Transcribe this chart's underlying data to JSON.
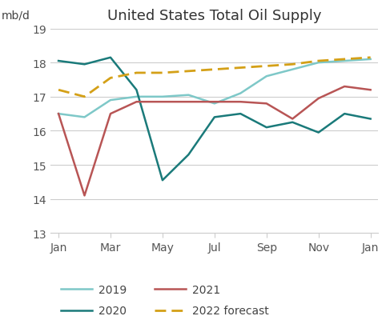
{
  "title": "United States Total Oil Supply",
  "ylabel": "mb/d",
  "x_ticks": [
    0,
    2,
    4,
    6,
    8,
    10,
    12
  ],
  "x_tick_labels": [
    "Jan",
    "Mar",
    "May",
    "Jul",
    "Sep",
    "Nov",
    "Jan"
  ],
  "ylim": [
    13,
    19
  ],
  "yticks": [
    13,
    14,
    15,
    16,
    17,
    18,
    19
  ],
  "series_2019": [
    16.5,
    16.4,
    16.9,
    17.0,
    17.0,
    17.05,
    16.8,
    17.1,
    17.6,
    17.8,
    18.0,
    18.05,
    18.1
  ],
  "series_2020": [
    18.05,
    17.95,
    18.15,
    17.2,
    14.55,
    15.3,
    16.4,
    16.5,
    16.1,
    16.25,
    15.95,
    16.5,
    16.35
  ],
  "series_2021": [
    16.5,
    14.1,
    16.5,
    16.85,
    16.85,
    16.85,
    16.85,
    16.85,
    16.8,
    16.35,
    16.95,
    17.3,
    17.2
  ],
  "series_2022": [
    17.2,
    17.0,
    17.55,
    17.7,
    17.7,
    17.75,
    17.8,
    17.85,
    17.9,
    17.95,
    18.05,
    18.1,
    18.15
  ],
  "color_2019": "#7EC8C8",
  "color_2020": "#1A7A7A",
  "color_2021": "#B85555",
  "color_2022": "#D4A017",
  "bg_color": "#FFFFFF",
  "grid_color": "#CCCCCC",
  "title_fontsize": 13,
  "label_fontsize": 10,
  "tick_fontsize": 10
}
